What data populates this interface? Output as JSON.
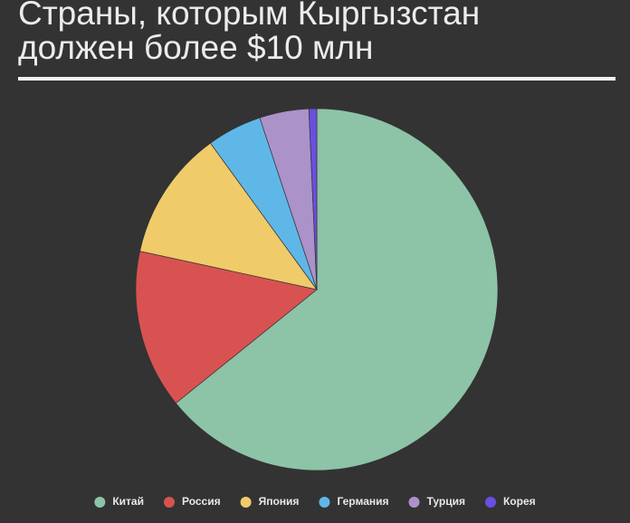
{
  "chart_data": {
    "type": "pie",
    "title": "Страны, которым Кыргызстан должен более $10 млн",
    "categories": [
      "Китай",
      "Россия",
      "Япония",
      "Германия",
      "Турция",
      "Корея"
    ],
    "values": [
      64.2,
      14.2,
      11.6,
      4.9,
      4.4,
      0.7
    ],
    "colors": [
      "#8dc3a7",
      "#d95252",
      "#f0cb69",
      "#5fb7e8",
      "#ab92c9",
      "#6a4fe0"
    ],
    "legend": "bottom"
  }
}
